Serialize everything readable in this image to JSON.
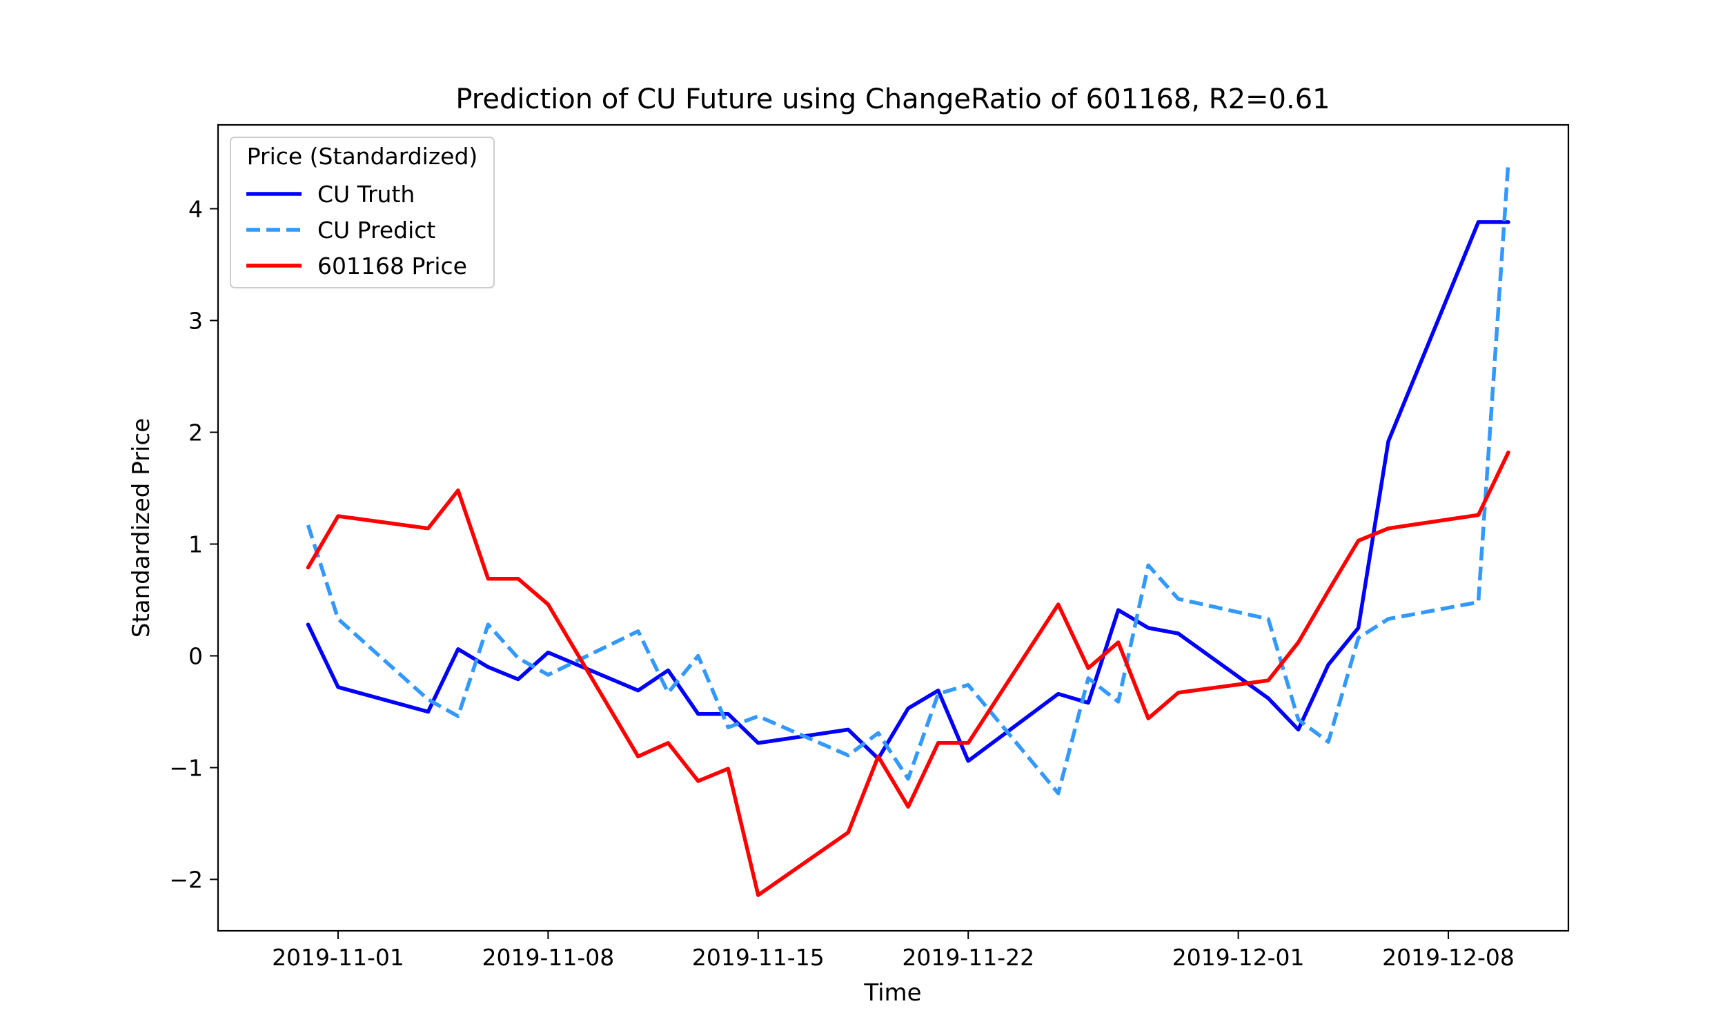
{
  "chart_data": {
    "type": "line",
    "title": "Prediction of CU Future using ChangeRatio of 601168, R2=0.61",
    "xlabel": "Time",
    "ylabel": "Standardized Price",
    "x_ticks": [
      "2019-11-01",
      "2019-11-08",
      "2019-11-15",
      "2019-11-22",
      "2019-12-01",
      "2019-12-08"
    ],
    "y_ticks": [
      -2,
      -1,
      0,
      1,
      2,
      3,
      4
    ],
    "y_tick_labels": [
      "−2",
      "−1",
      "0",
      "1",
      "2",
      "3",
      "4"
    ],
    "xlim": [
      "2019-10-28",
      "2019-12-12"
    ],
    "ylim": [
      -2.46,
      4.75
    ],
    "grid": false,
    "legend": {
      "title": "Price (Standardized)",
      "position": "top-left"
    },
    "x": [
      "2019-10-31",
      "2019-11-01",
      "2019-11-04",
      "2019-11-05",
      "2019-11-06",
      "2019-11-07",
      "2019-11-08",
      "2019-11-11",
      "2019-11-12",
      "2019-11-13",
      "2019-11-14",
      "2019-11-15",
      "2019-11-18",
      "2019-11-19",
      "2019-11-20",
      "2019-11-21",
      "2019-11-22",
      "2019-11-25",
      "2019-11-26",
      "2019-11-27",
      "2019-11-28",
      "2019-11-29",
      "2019-12-02",
      "2019-12-03",
      "2019-12-04",
      "2019-12-05",
      "2019-12-06",
      "2019-12-09",
      "2019-12-10"
    ],
    "series": [
      {
        "name": "CU Truth",
        "color": "#0000ff",
        "style": "solid",
        "values": [
          0.28,
          -0.28,
          -0.5,
          0.06,
          -0.1,
          -0.21,
          0.03,
          -0.31,
          -0.13,
          -0.52,
          -0.52,
          -0.78,
          -0.66,
          -0.92,
          -0.47,
          -0.31,
          -0.94,
          -0.34,
          -0.42,
          0.41,
          0.25,
          0.2,
          -0.38,
          -0.66,
          -0.08,
          0.25,
          1.92,
          3.88,
          3.88
        ]
      },
      {
        "name": "CU Predict",
        "color": "#3399ff",
        "style": "dashed",
        "values": [
          1.17,
          0.33,
          -0.39,
          -0.54,
          0.28,
          -0.02,
          -0.17,
          0.22,
          -0.33,
          0.0,
          -0.64,
          -0.54,
          -0.89,
          -0.69,
          -1.1,
          -0.34,
          -0.26,
          -1.23,
          -0.2,
          -0.41,
          0.81,
          0.51,
          0.33,
          -0.57,
          -0.77,
          0.16,
          0.33,
          0.48,
          4.42
        ]
      },
      {
        "name": "601168 Price",
        "color": "#ff0000",
        "style": "solid",
        "values": [
          0.79,
          1.25,
          1.14,
          1.48,
          0.69,
          0.69,
          0.46,
          -0.9,
          -0.78,
          -1.12,
          -1.01,
          -2.14,
          -1.58,
          -0.9,
          -1.35,
          -0.78,
          -0.78,
          0.46,
          -0.11,
          0.12,
          -0.56,
          -0.33,
          -0.22,
          0.12,
          0.58,
          1.03,
          1.14,
          1.26,
          1.82
        ]
      }
    ]
  }
}
